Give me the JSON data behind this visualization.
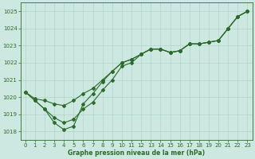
{
  "line_top": [
    1020.3,
    1019.9,
    1019.8,
    1019.6,
    1019.5,
    1019.8,
    1020.2,
    1020.5,
    1021.0,
    1021.5,
    1022.0,
    1022.2,
    1022.5,
    1022.8,
    1022.8,
    1022.6,
    1022.7,
    1023.1,
    1023.1,
    1023.2,
    1023.3,
    1024.0,
    1024.7,
    1025.0
  ],
  "line_mid": [
    1020.3,
    1019.8,
    1019.3,
    1018.8,
    1018.5,
    1018.7,
    1019.3,
    1019.7,
    1020.4,
    1021.0,
    1021.8,
    1022.0,
    1022.5,
    1022.8,
    1022.8,
    1022.6,
    1022.7,
    1023.1,
    1023.1,
    1023.2,
    1023.3,
    1024.0,
    1024.7,
    1025.0
  ],
  "line_bot": [
    1020.3,
    1019.8,
    1019.3,
    1018.5,
    1018.1,
    1018.3,
    1019.6,
    1020.2,
    1020.9,
    1021.5,
    1022.0,
    1022.2,
    1022.5,
    1022.8,
    1022.8,
    1022.6,
    1022.7,
    1023.1,
    1023.1,
    1023.2,
    1023.3,
    1024.0,
    1024.7,
    1025.0
  ],
  "x": [
    0,
    1,
    2,
    3,
    4,
    5,
    6,
    7,
    8,
    9,
    10,
    11,
    12,
    13,
    14,
    15,
    16,
    17,
    18,
    19,
    20,
    21,
    22,
    23
  ],
  "ylim": [
    1017.5,
    1025.5
  ],
  "yticks": [
    1018,
    1019,
    1020,
    1021,
    1022,
    1023,
    1024,
    1025
  ],
  "xlabel": "Graphe pression niveau de la mer (hPa)",
  "line_color": "#2d6a2d",
  "bg_color": "#cce8e0",
  "grid_color": "#b0d4c8",
  "title_color": "#2d6a2d"
}
